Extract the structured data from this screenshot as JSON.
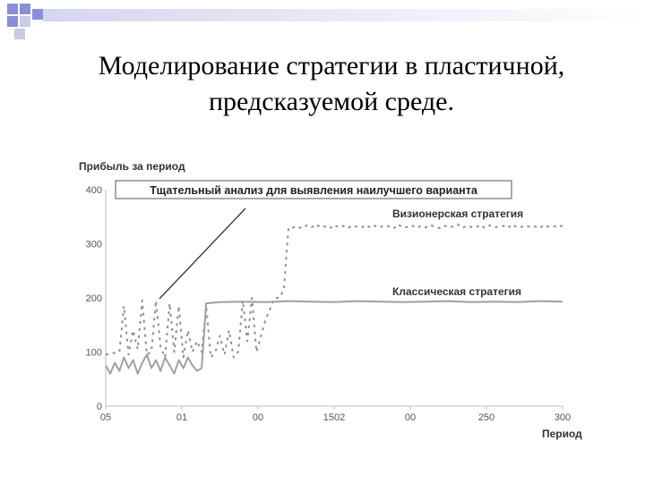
{
  "slide": {
    "title_line1": "Моделирование стратегии в пластичной,",
    "title_line2": "предсказуемой среде."
  },
  "colors": {
    "deco_square": "#8a8fd8",
    "deco_square_light": "#c8cae8",
    "axis": "#bdbdbd",
    "classic_series": "#a0a0a0",
    "visionary_series": "#909090",
    "text_label": "#333333"
  },
  "chart_data": {
    "type": "line",
    "ylabel": "Прибыль за период",
    "xlabel": "Период",
    "ylim": [
      0,
      400
    ],
    "yticks": [
      0,
      100,
      200,
      300,
      400
    ],
    "xtick_labels": [
      "05",
      "01",
      "00",
      "1502",
      "00",
      "250",
      "300"
    ],
    "grid": false,
    "annotation": "Тщательный анализ для выявления наилучшего варианта",
    "series": [
      {
        "name": "Визионерская стратегия",
        "style": "dashed",
        "x": [
          0,
          3,
          4,
          5,
          6,
          7,
          8,
          9,
          10,
          11,
          12,
          13,
          14,
          15,
          16,
          17,
          18,
          19,
          20,
          21,
          22,
          23,
          24,
          25,
          26,
          27,
          28,
          29,
          30,
          31,
          32,
          33,
          34,
          35,
          36,
          37,
          38,
          39,
          40,
          41,
          42,
          43,
          44,
          45,
          46,
          47,
          48,
          49,
          50,
          51,
          52,
          53,
          54,
          55,
          56,
          57,
          58,
          59,
          60,
          61,
          62,
          63,
          64,
          65,
          66,
          67,
          68,
          69,
          70,
          71,
          72,
          73,
          74,
          75,
          76,
          77,
          78,
          79,
          80,
          81,
          82,
          83,
          84,
          85,
          86,
          87,
          88,
          89,
          90,
          91,
          92,
          93,
          94,
          95,
          96,
          97,
          98,
          99,
          100
        ],
        "values": [
          95,
          100,
          185,
          95,
          140,
          105,
          195,
          95,
          100,
          195,
          110,
          90,
          190,
          100,
          185,
          90,
          140,
          100,
          120,
          100,
          185,
          90,
          100,
          130,
          95,
          140,
          90,
          100,
          195,
          120,
          200,
          100,
          130,
          160,
          180,
          200,
          200,
          215,
          330,
          330,
          332,
          328,
          334,
          330,
          336,
          330,
          332,
          328,
          335,
          330,
          333,
          329,
          334,
          331,
          330,
          335,
          329,
          333,
          330,
          334,
          332,
          328,
          336,
          330,
          331,
          334,
          329,
          333,
          330,
          335,
          331,
          329,
          334,
          330,
          332,
          336,
          329,
          333,
          331,
          330,
          335,
          329,
          334,
          330,
          332,
          333,
          329,
          336,
          330,
          331,
          334,
          330,
          332,
          329,
          335,
          331,
          333,
          330,
          334
        ]
      },
      {
        "name": "Классическая стратегия",
        "style": "solid",
        "x": [
          0,
          1,
          2,
          3,
          4,
          5,
          6,
          7,
          8,
          9,
          10,
          11,
          12,
          13,
          14,
          15,
          16,
          17,
          18,
          19,
          20,
          21,
          22,
          25,
          30,
          35,
          40,
          45,
          50,
          55,
          60,
          65,
          70,
          75,
          80,
          85,
          90,
          95,
          100
        ],
        "values": [
          75,
          60,
          80,
          65,
          90,
          70,
          85,
          60,
          80,
          95,
          70,
          85,
          65,
          90,
          75,
          60,
          85,
          70,
          90,
          75,
          65,
          70,
          190,
          192,
          193,
          192,
          194,
          193,
          192,
          194,
          193,
          192,
          193,
          194,
          192,
          193,
          192,
          194,
          193
        ]
      }
    ]
  }
}
